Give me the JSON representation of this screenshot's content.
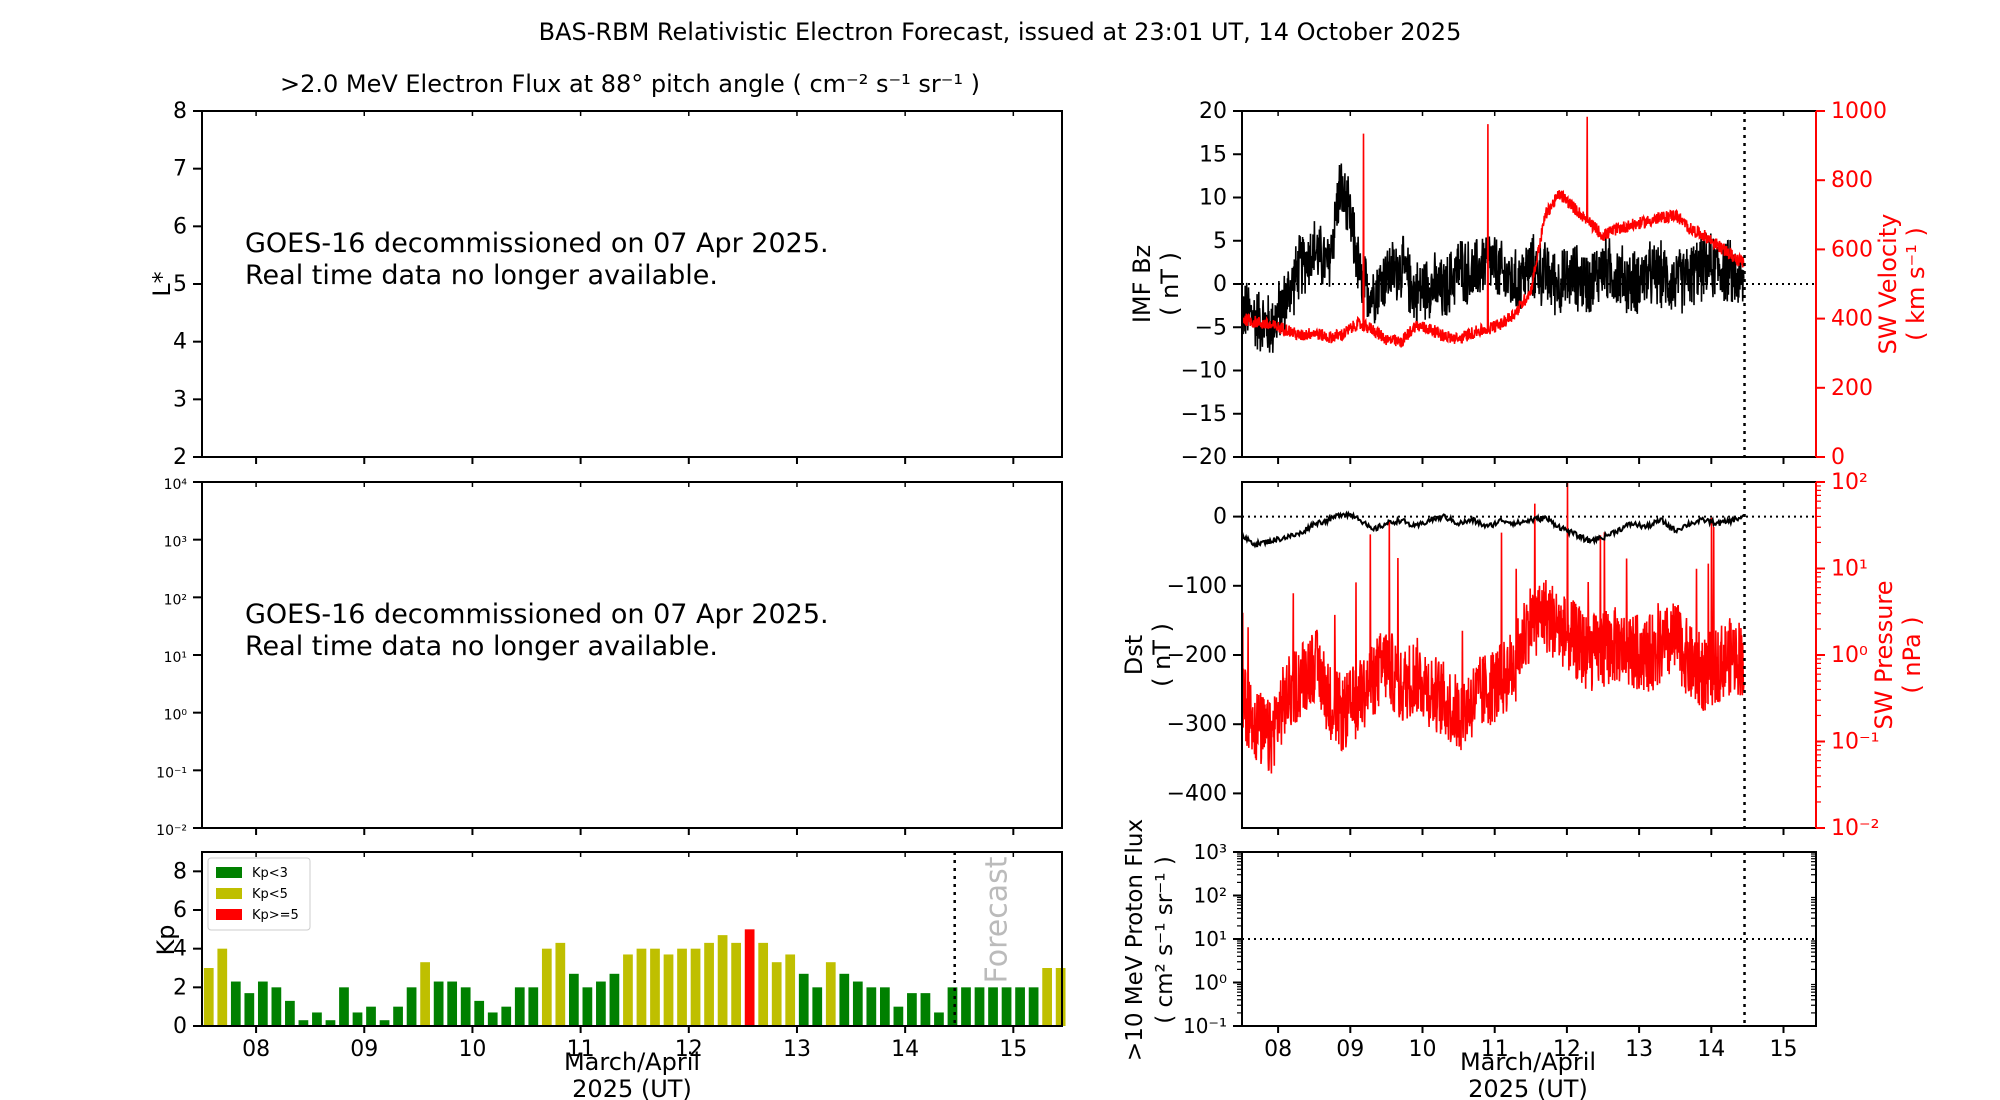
{
  "figure": {
    "title": "BAS-RBM Relativistic Electron Forecast, issued at 23:01 UT, 14 October 2025",
    "xlabel_line1": "March/April",
    "xlabel_line2": "2025 (UT)",
    "notice_line1": "GOES-16 decommissioned on 07 Apr 2025.",
    "notice_line2": "Real time data no longer available.",
    "forecast_label": "Forecast",
    "day_ticks": [
      "08",
      "09",
      "10",
      "11",
      "12",
      "13",
      "14",
      "15"
    ],
    "colors": {
      "black": "#000000",
      "red": "#ff0000",
      "kp_low": "#008000",
      "kp_mid": "#bfbf00",
      "kp_high": "#ff0000",
      "forecast_text": "#bbbbbb"
    }
  },
  "chart_data": [
    {
      "id": "flux-L",
      "type": "heatmap",
      "title": ">2.0 MeV Electron Flux at 88° pitch angle ( cm⁻² s⁻¹ sr⁻¹ )",
      "ylabel": "L*",
      "ylim": [
        2,
        8
      ],
      "yticks": [
        "2",
        "3",
        "4",
        "5",
        "6",
        "7",
        "8"
      ],
      "xlim": [
        7.5,
        15.45
      ]
    },
    {
      "id": "flux-log",
      "type": "line",
      "ylim": [
        0.01,
        10000.0
      ],
      "yscale": "log",
      "yticks": [
        "10⁻²",
        "10⁻¹",
        "10⁰",
        "10¹",
        "10²",
        "10³",
        "10⁴"
      ],
      "xlim": [
        7.5,
        15.45
      ]
    },
    {
      "id": "kp",
      "type": "bar",
      "ylabel": "Kp",
      "ylim": [
        0,
        9
      ],
      "yticks": [
        "0",
        "2",
        "4",
        "6",
        "8"
      ],
      "xlim": [
        7.5,
        15.45
      ],
      "bar_width_days": 0.09,
      "legend": {
        "placement": "upper-left",
        "entries": [
          "Kp<3",
          "Kp<5",
          "Kp>=5"
        ]
      },
      "forecast_start": 14.458,
      "x": [
        7.5625,
        7.6875,
        7.8125,
        7.9375,
        8.0625,
        8.1875,
        8.3125,
        8.4375,
        8.5625,
        8.6875,
        8.8125,
        8.9375,
        9.0625,
        9.1875,
        9.3125,
        9.4375,
        9.5625,
        9.6875,
        9.8125,
        9.9375,
        10.0625,
        10.1875,
        10.3125,
        10.4375,
        10.5625,
        10.6875,
        10.8125,
        10.9375,
        11.0625,
        11.1875,
        11.3125,
        11.4375,
        11.5625,
        11.6875,
        11.8125,
        11.9375,
        12.0625,
        12.1875,
        12.3125,
        12.4375,
        12.5625,
        12.6875,
        12.8125,
        12.9375,
        13.0625,
        13.1875,
        13.3125,
        13.4375,
        13.5625,
        13.6875,
        13.8125,
        13.9375,
        14.0625,
        14.1875,
        14.3125,
        14.4375,
        14.5625,
        14.6875,
        14.8125,
        14.9375,
        15.0625,
        15.1875,
        15.3125,
        15.4375
      ],
      "values": [
        3.0,
        4.0,
        2.3,
        1.7,
        2.3,
        2.0,
        1.3,
        0.3,
        0.7,
        0.3,
        2.0,
        0.7,
        1.0,
        0.3,
        1.0,
        2.0,
        3.3,
        2.3,
        2.3,
        2.0,
        1.3,
        0.7,
        1.0,
        2.0,
        2.0,
        4.0,
        4.3,
        2.7,
        2.0,
        2.3,
        2.7,
        3.7,
        4.0,
        4.0,
        3.7,
        4.0,
        4.0,
        4.3,
        4.7,
        4.3,
        5.0,
        4.3,
        3.3,
        3.7,
        2.7,
        2.0,
        3.3,
        2.7,
        2.3,
        2.0,
        2.0,
        1.0,
        1.7,
        1.7,
        0.7,
        2.0,
        2.0,
        2.0,
        2.0,
        2.0,
        2.0,
        2.0,
        3.0,
        3.0
      ]
    },
    {
      "id": "imf-sw",
      "type": "line",
      "ylabel_left": "IMF Bz",
      "ylabel_left_unit": "( nT )",
      "ylim_left": [
        -20,
        20
      ],
      "yticks_left": [
        "20",
        "15",
        "10",
        "5",
        "0",
        "−5",
        "−10",
        "−15",
        "−20"
      ],
      "ylabel_right": "SW Velocity",
      "ylabel_right_unit": "( km s⁻¹ )",
      "ylim_right": [
        0,
        1000
      ],
      "yticks_right": [
        "1000",
        "800",
        "600",
        "400",
        "200",
        "0"
      ],
      "xlim": [
        7.5,
        15.45
      ],
      "now": 14.46,
      "series": [
        {
          "axis": "left",
          "color": "#000000",
          "noise": 2.2,
          "x": [
            7.5,
            7.7,
            7.9,
            8.1,
            8.3,
            8.5,
            8.7,
            8.85,
            8.95,
            9.05,
            9.15,
            9.3,
            9.5,
            9.7,
            9.9,
            10.1,
            10.3,
            10.5,
            10.7,
            10.9,
            11.1,
            11.3,
            11.5,
            11.7,
            11.9,
            12.1,
            12.3,
            12.5,
            12.7,
            12.9,
            13.1,
            13.3,
            13.5,
            13.7,
            13.9,
            14.1,
            14.3,
            14.45
          ],
          "y": [
            -3,
            -4,
            -5,
            -2,
            2,
            4,
            2,
            11,
            9,
            5,
            0,
            -1,
            1,
            2,
            -1,
            0,
            -1,
            2,
            1,
            3,
            1,
            0,
            2,
            1,
            0,
            1,
            0,
            2,
            1,
            0,
            1,
            1,
            0,
            1,
            2,
            2,
            1,
            0
          ]
        },
        {
          "axis": "right",
          "color": "#ff0000",
          "noise": 18,
          "x": [
            7.5,
            7.7,
            7.9,
            8.1,
            8.3,
            8.5,
            8.7,
            8.9,
            9.1,
            9.3,
            9.5,
            9.7,
            9.9,
            10.1,
            10.3,
            10.5,
            10.7,
            10.9,
            11.1,
            11.3,
            11.5,
            11.7,
            11.9,
            12.1,
            12.3,
            12.5,
            12.7,
            12.9,
            13.1,
            13.3,
            13.5,
            13.7,
            13.9,
            14.1,
            14.3,
            14.45
          ],
          "y": [
            400,
            390,
            380,
            370,
            350,
            360,
            345,
            355,
            385,
            370,
            340,
            330,
            380,
            370,
            350,
            340,
            360,
            370,
            385,
            420,
            480,
            700,
            760,
            720,
            680,
            640,
            660,
            670,
            680,
            690,
            700,
            660,
            640,
            610,
            580,
            560
          ]
        }
      ]
    },
    {
      "id": "dst-pressure",
      "type": "line",
      "ylabel_left": "Dst",
      "ylabel_left_unit": "( nT )",
      "ylim_left": [
        -450,
        50
      ],
      "yticks_left": [
        "0",
        "−100",
        "−200",
        "−300",
        "−400"
      ],
      "ylabel_right": "SW Pressure",
      "ylabel_right_unit": "( nPa )",
      "ylim_right": [
        0.01,
        100
      ],
      "yscale_right": "log",
      "yticks_right": [
        "10²",
        "10¹",
        "10⁰",
        "10⁻¹",
        "10⁻²"
      ],
      "xlim": [
        7.5,
        15.45
      ],
      "now": 14.46,
      "series": [
        {
          "axis": "left",
          "color": "#000000",
          "noise": 4,
          "x": [
            7.5,
            7.7,
            7.9,
            8.1,
            8.3,
            8.5,
            8.7,
            8.9,
            9.1,
            9.3,
            9.5,
            9.7,
            9.9,
            10.1,
            10.3,
            10.5,
            10.7,
            10.9,
            11.1,
            11.3,
            11.5,
            11.7,
            11.9,
            12.1,
            12.3,
            12.5,
            12.7,
            12.9,
            13.1,
            13.3,
            13.5,
            13.7,
            13.9,
            14.1,
            14.3,
            14.45
          ],
          "y": [
            -30,
            -40,
            -35,
            -30,
            -25,
            -10,
            -5,
            5,
            0,
            -20,
            -10,
            -5,
            -15,
            -5,
            0,
            -10,
            -5,
            -15,
            -5,
            -10,
            -5,
            -2,
            -15,
            -25,
            -35,
            -30,
            -20,
            -10,
            -15,
            -5,
            -20,
            -10,
            -5,
            -10,
            -5,
            0
          ]
        },
        {
          "axis": "right",
          "color": "#ff0000",
          "noise_log": 0.45,
          "x": [
            7.5,
            7.7,
            7.9,
            8.1,
            8.3,
            8.5,
            8.7,
            8.9,
            9.1,
            9.3,
            9.5,
            9.7,
            9.9,
            10.1,
            10.3,
            10.5,
            10.7,
            10.9,
            11.1,
            11.3,
            11.5,
            11.7,
            11.9,
            12.1,
            12.3,
            12.5,
            12.7,
            12.9,
            13.1,
            13.3,
            13.5,
            13.7,
            13.9,
            14.1,
            14.3,
            14.45
          ],
          "y": [
            0.3,
            0.15,
            0.1,
            0.3,
            0.5,
            0.8,
            0.3,
            0.2,
            0.3,
            0.5,
            0.8,
            0.4,
            0.6,
            0.4,
            0.3,
            0.2,
            0.3,
            0.4,
            0.5,
            0.8,
            2.5,
            3.0,
            2.0,
            1.5,
            1.0,
            1.2,
            1.3,
            1.1,
            1.0,
            1.2,
            1.5,
            0.8,
            0.6,
            0.8,
            1.0,
            0.9
          ]
        }
      ]
    },
    {
      "id": "proton",
      "type": "line",
      "ylabel_line1": ">10 MeV Proton Flux",
      "ylabel_line2": "( cm² s⁻¹ sr⁻¹ )",
      "ylim": [
        0.1,
        1000
      ],
      "yscale": "log",
      "yticks": [
        "10³",
        "10²",
        "10¹",
        "10⁰",
        "10⁻¹"
      ],
      "xlim": [
        7.5,
        15.45
      ],
      "threshold": 10,
      "now": 14.46
    }
  ]
}
